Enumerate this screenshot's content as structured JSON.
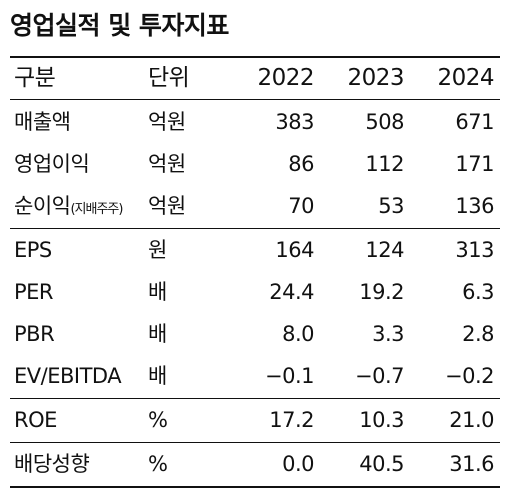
{
  "title": "영업실적 및 투자지표",
  "header": {
    "name": "구분",
    "unit": "단위",
    "y1": "2022",
    "y2": "2023",
    "y3": "2024"
  },
  "rows": [
    {
      "name": "매출액",
      "suffix": "",
      "unit": "억원",
      "v1": "383",
      "v2": "508",
      "v3": "671"
    },
    {
      "name": "영업이익",
      "suffix": "",
      "unit": "억원",
      "v1": "86",
      "v2": "112",
      "v3": "171"
    },
    {
      "name": "순이익",
      "suffix": "(지배주주)",
      "unit": "억원",
      "v1": "70",
      "v2": "53",
      "v3": "136"
    },
    {
      "name": "EPS",
      "suffix": "",
      "unit": "원",
      "v1": "164",
      "v2": "124",
      "v3": "313"
    },
    {
      "name": "PER",
      "suffix": "",
      "unit": "배",
      "v1": "24.4",
      "v2": "19.2",
      "v3": "6.3"
    },
    {
      "name": "PBR",
      "suffix": "",
      "unit": "배",
      "v1": "8.0",
      "v2": "3.3",
      "v3": "2.8"
    },
    {
      "name": "EV/EBITDA",
      "suffix": "",
      "unit": "배",
      "v1": "−0.1",
      "v2": "−0.7",
      "v3": "−0.2"
    },
    {
      "name": "ROE",
      "suffix": "",
      "unit": "%",
      "v1": "17.2",
      "v2": "10.3",
      "v3": "21.0"
    },
    {
      "name": "배당성향",
      "suffix": "",
      "unit": "%",
      "v1": "0.0",
      "v2": "40.5",
      "v3": "31.6"
    }
  ]
}
